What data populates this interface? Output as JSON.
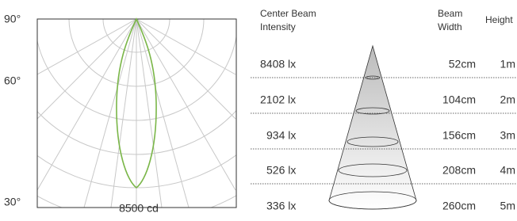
{
  "polar": {
    "angle_labels": [
      "90°",
      "60°",
      "30°"
    ],
    "scale_label": "8500 cd"
  },
  "table": {
    "header": [
      "Center Beam Intensity",
      "Beam Width",
      "Height"
    ],
    "rows": [
      [
        "8408 lx",
        "52cm",
        "1m"
      ],
      [
        "2102 lx",
        "104cm",
        "2m"
      ],
      [
        "934 lx",
        "156cm",
        "3m"
      ],
      [
        "526 lx",
        "208cm",
        "4m"
      ],
      [
        "336 lx",
        "260cm",
        "5m"
      ]
    ]
  }
}
